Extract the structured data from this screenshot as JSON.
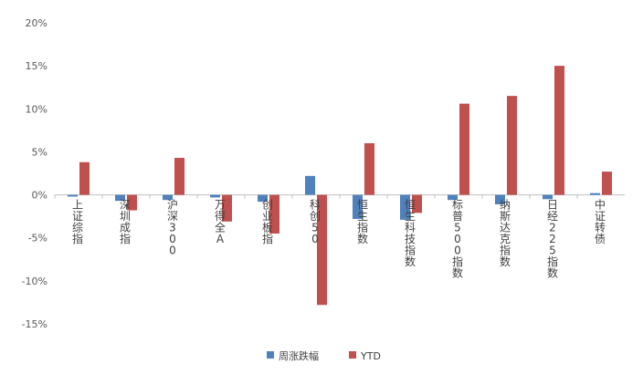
{
  "chart_data": {
    "type": "bar",
    "categories": [
      "上证综指",
      "深圳成指",
      "沪深300",
      "万得全A",
      "创业板指",
      "科创50",
      "恒生指数",
      "恒生科技指数",
      "标普500指数",
      "纳斯达克指数",
      "日经225指数",
      "中证转债"
    ],
    "series": [
      {
        "name": "周涨跌幅",
        "color": "#4f81bd",
        "values": [
          -0.2,
          -0.7,
          -0.6,
          -0.3,
          -0.8,
          2.2,
          -2.8,
          -2.9,
          -0.6,
          -1.1,
          -0.5,
          0.2
        ]
      },
      {
        "name": "YTD",
        "color": "#c0504d",
        "values": [
          3.8,
          -1.8,
          4.3,
          -3.1,
          -4.5,
          -12.8,
          6.0,
          -2.1,
          10.6,
          11.5,
          15.0,
          2.7
        ]
      }
    ],
    "yticks": [
      "20%",
      "15%",
      "10%",
      "5%",
      "0%",
      "-5%",
      "-10%",
      "-15%"
    ],
    "ytick_values": [
      20,
      15,
      10,
      5,
      0,
      -5,
      -10,
      -15
    ],
    "ylim": [
      -15,
      20
    ],
    "legend_position": "bottom",
    "grid": false
  }
}
